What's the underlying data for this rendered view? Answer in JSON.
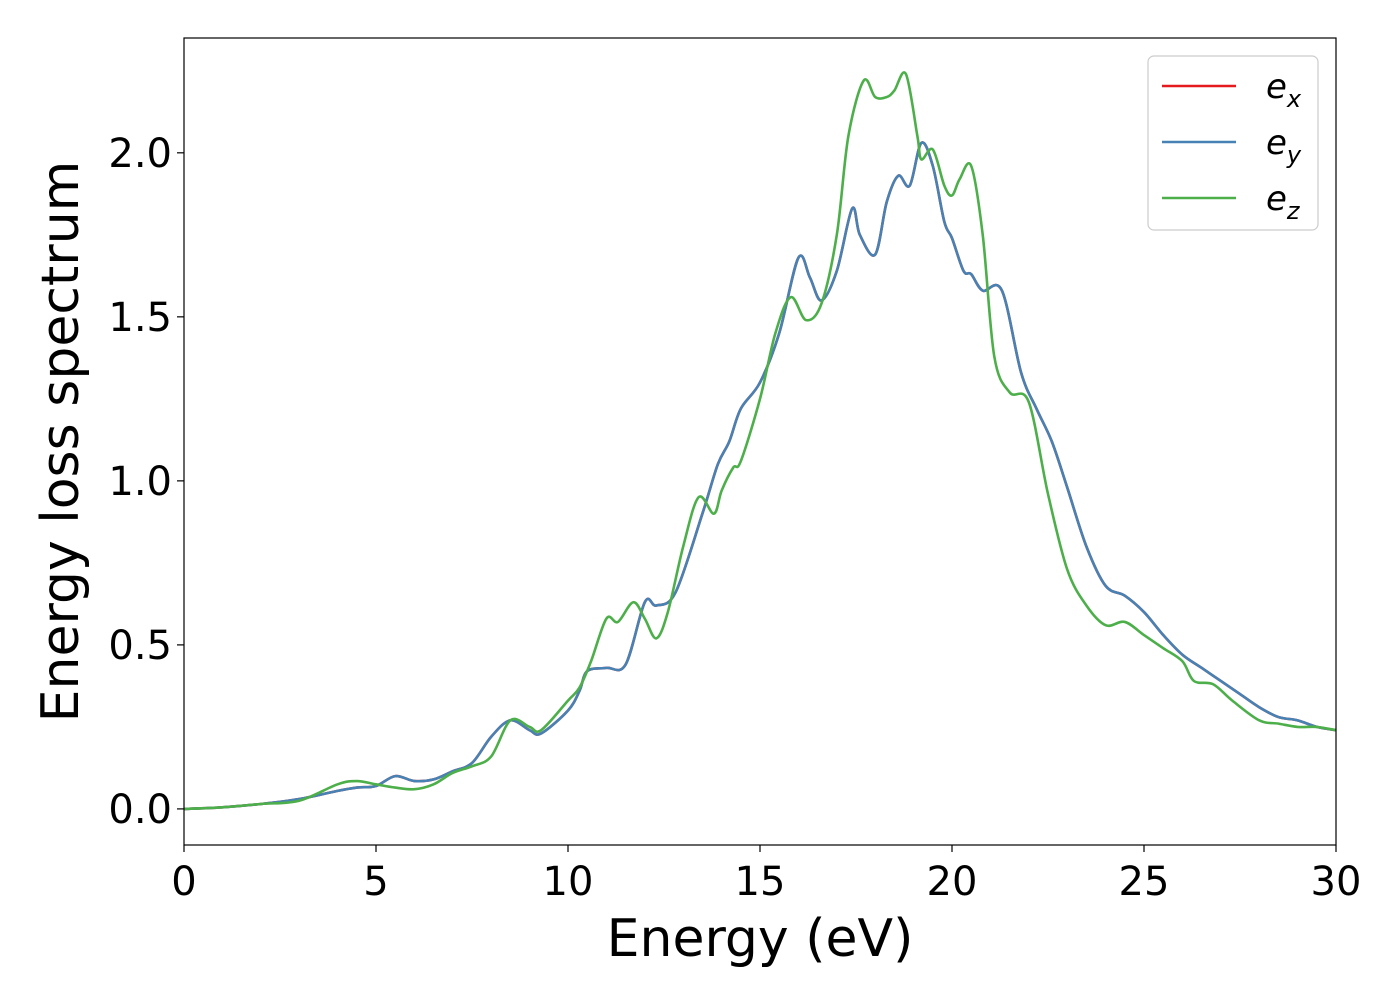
{
  "chart_data": {
    "type": "line",
    "xlabel": "Energy (eV)",
    "ylabel": "Energy loss spectrum",
    "xlim": [
      0,
      30
    ],
    "ylim": [
      -0.11,
      2.35
    ],
    "xticks": [
      0,
      5,
      10,
      15,
      20,
      25,
      30
    ],
    "xtick_labels": [
      "0",
      "5",
      "10",
      "15",
      "20",
      "25",
      "30"
    ],
    "yticks": [
      0.0,
      0.5,
      1.0,
      1.5,
      2.0
    ],
    "ytick_labels": [
      "0.0",
      "0.5",
      "1.0",
      "1.5",
      "2.0"
    ],
    "grid": false,
    "legend_position": "top-right",
    "series": [
      {
        "name": "e_x",
        "legend_base": "e",
        "legend_sub": "x",
        "color": "#e41a1c",
        "x": [
          0,
          1,
          2,
          3,
          4,
          4.5,
          5,
          5.5,
          6,
          6.5,
          7,
          7.5,
          8,
          8.5,
          9,
          9.3,
          10,
          10.3,
          10.5,
          11,
          11.5,
          12,
          12.3,
          12.8,
          13.5,
          13.9,
          14.2,
          14.5,
          15,
          15.5,
          16,
          16.3,
          16.6,
          17,
          17.4,
          17.6,
          18,
          18.3,
          18.6,
          18.9,
          19.2,
          19.5,
          19.8,
          20,
          20.3,
          20.5,
          20.8,
          21.3,
          21.8,
          22.2,
          22.6,
          23,
          23.5,
          24,
          24.5,
          25,
          25.5,
          26,
          26.5,
          27,
          27.5,
          28,
          28.5,
          29,
          29.5,
          30
        ],
        "y": [
          0.0,
          0.005,
          0.015,
          0.03,
          0.055,
          0.065,
          0.07,
          0.1,
          0.085,
          0.09,
          0.115,
          0.14,
          0.22,
          0.27,
          0.24,
          0.23,
          0.3,
          0.36,
          0.42,
          0.43,
          0.44,
          0.63,
          0.62,
          0.66,
          0.9,
          1.05,
          1.12,
          1.22,
          1.3,
          1.45,
          1.68,
          1.62,
          1.55,
          1.64,
          1.83,
          1.75,
          1.69,
          1.85,
          1.93,
          1.9,
          2.03,
          1.96,
          1.79,
          1.74,
          1.64,
          1.63,
          1.58,
          1.58,
          1.33,
          1.22,
          1.12,
          0.98,
          0.8,
          0.68,
          0.65,
          0.6,
          0.53,
          0.47,
          0.43,
          0.39,
          0.35,
          0.31,
          0.28,
          0.27,
          0.25,
          0.24
        ]
      },
      {
        "name": "e_y",
        "legend_base": "e",
        "legend_sub": "y",
        "color": "#4682b4",
        "x": [
          0,
          1,
          2,
          3,
          4,
          4.5,
          5,
          5.5,
          6,
          6.5,
          7,
          7.5,
          8,
          8.5,
          9,
          9.3,
          10,
          10.3,
          10.5,
          11,
          11.5,
          12,
          12.3,
          12.8,
          13.5,
          13.9,
          14.2,
          14.5,
          15,
          15.5,
          16,
          16.3,
          16.6,
          17,
          17.4,
          17.6,
          18,
          18.3,
          18.6,
          18.9,
          19.2,
          19.5,
          19.8,
          20,
          20.3,
          20.5,
          20.8,
          21.3,
          21.8,
          22.2,
          22.6,
          23,
          23.5,
          24,
          24.5,
          25,
          25.5,
          26,
          26.5,
          27,
          27.5,
          28,
          28.5,
          29,
          29.5,
          30
        ],
        "y": [
          0.0,
          0.005,
          0.015,
          0.03,
          0.055,
          0.065,
          0.07,
          0.1,
          0.085,
          0.09,
          0.115,
          0.14,
          0.22,
          0.27,
          0.24,
          0.23,
          0.3,
          0.36,
          0.42,
          0.43,
          0.44,
          0.63,
          0.62,
          0.66,
          0.9,
          1.05,
          1.12,
          1.22,
          1.3,
          1.45,
          1.68,
          1.62,
          1.55,
          1.64,
          1.83,
          1.75,
          1.69,
          1.85,
          1.93,
          1.9,
          2.03,
          1.96,
          1.79,
          1.74,
          1.64,
          1.63,
          1.58,
          1.58,
          1.33,
          1.22,
          1.12,
          0.98,
          0.8,
          0.68,
          0.65,
          0.6,
          0.53,
          0.47,
          0.43,
          0.39,
          0.35,
          0.31,
          0.28,
          0.27,
          0.25,
          0.24
        ]
      },
      {
        "name": "e_z",
        "legend_base": "e",
        "legend_sub": "z",
        "color": "#4daf4a",
        "x": [
          0,
          1,
          2,
          3,
          4,
          4.5,
          5,
          5.5,
          6,
          6.5,
          7,
          7.5,
          8,
          8.5,
          9,
          9.3,
          10,
          10.3,
          10.6,
          11,
          11.3,
          11.7,
          12,
          12.3,
          12.6,
          13,
          13.4,
          13.8,
          14,
          14.3,
          14.5,
          15,
          15.4,
          15.8,
          16.2,
          16.6,
          17,
          17.3,
          17.7,
          18,
          18.3,
          18.5,
          18.8,
          19.1,
          19.2,
          19.5,
          19.8,
          20,
          20.2,
          20.5,
          20.8,
          21.1,
          21.5,
          22,
          22.5,
          23,
          23.5,
          24,
          24.5,
          25,
          25.5,
          26,
          26.3,
          26.8,
          27.3,
          28,
          28.5,
          29,
          29.5,
          30
        ],
        "y": [
          0.0,
          0.005,
          0.015,
          0.025,
          0.075,
          0.085,
          0.075,
          0.065,
          0.06,
          0.075,
          0.11,
          0.13,
          0.16,
          0.27,
          0.25,
          0.24,
          0.33,
          0.37,
          0.45,
          0.58,
          0.57,
          0.63,
          0.58,
          0.52,
          0.6,
          0.8,
          0.95,
          0.9,
          0.97,
          1.04,
          1.06,
          1.25,
          1.45,
          1.56,
          1.49,
          1.54,
          1.75,
          2.05,
          2.22,
          2.17,
          2.17,
          2.19,
          2.24,
          2.05,
          1.98,
          2.01,
          1.9,
          1.87,
          1.92,
          1.96,
          1.75,
          1.38,
          1.27,
          1.24,
          0.96,
          0.73,
          0.62,
          0.56,
          0.57,
          0.53,
          0.49,
          0.45,
          0.39,
          0.38,
          0.33,
          0.27,
          0.26,
          0.25,
          0.25,
          0.24
        ]
      }
    ]
  }
}
